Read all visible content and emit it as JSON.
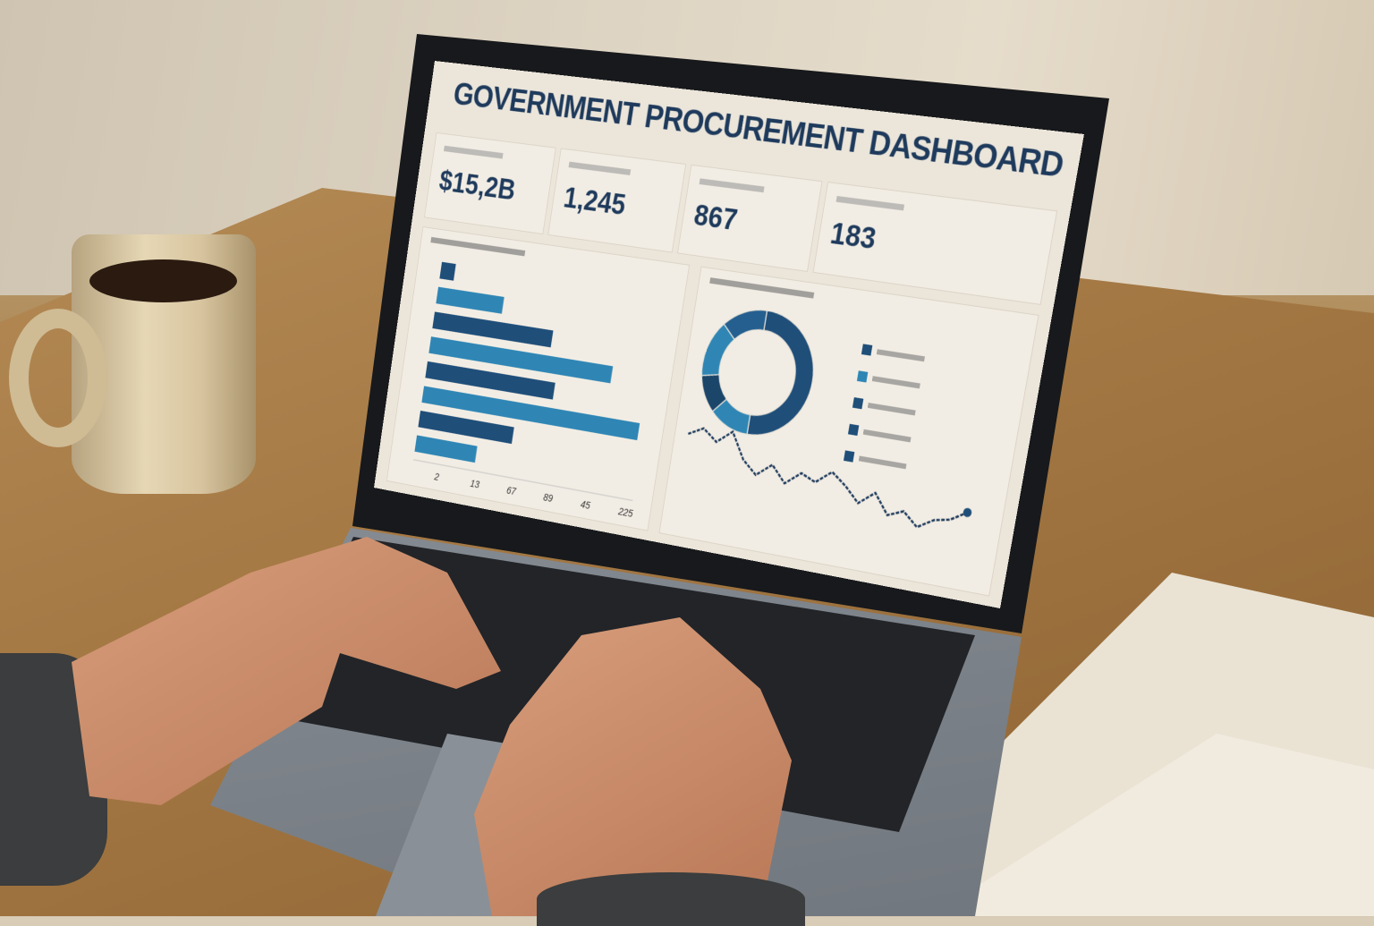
{
  "dashboard": {
    "title": "GOVERNMENT PROCUREMENT DASHBOARD",
    "kpis": [
      {
        "value": "$15,2B"
      },
      {
        "value": "1,245"
      },
      {
        "value": "867"
      },
      {
        "value": "183"
      }
    ]
  },
  "colors": {
    "dark": "#1f4e79",
    "light": "#2f86b5",
    "navy": "#1e3a5c",
    "screen_bg": "#ebe5da"
  },
  "chart_data": [
    {
      "type": "bar",
      "orientation": "horizontal",
      "values": [
        15,
        70,
        125,
        190,
        135,
        225,
        100,
        65
      ],
      "tick_labels": [
        "2",
        "13",
        "67",
        "89",
        "45",
        "225"
      ],
      "xlim": [
        0,
        230
      ]
    },
    {
      "type": "pie",
      "donut": true,
      "values": [
        50,
        12,
        10,
        15,
        13
      ]
    },
    {
      "type": "line",
      "values": [
        6,
        6.5,
        5.8,
        6.6,
        5,
        4.2,
        5,
        4,
        4.8,
        4.4,
        5.2,
        4.5,
        3.6,
        4.4,
        3.2,
        3.6,
        2.8,
        3.4,
        3.6,
        4.2
      ]
    }
  ]
}
